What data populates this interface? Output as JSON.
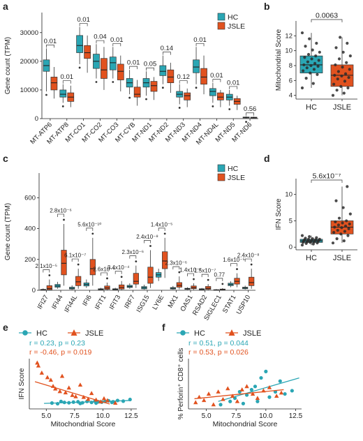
{
  "colors": {
    "hc": "#2aa6b4",
    "jsle": "#e1521f",
    "dot": "#333333"
  },
  "chart_data": [
    {
      "panel": "a",
      "type": "box",
      "ylabel": "Gene count (TPM)",
      "ylim": [
        0,
        37000
      ],
      "yticks": [
        0,
        10000,
        20000,
        30000
      ],
      "groups": [
        "HC",
        "JSLE"
      ],
      "categories": [
        "MT-ATP6",
        "MT-ATP8",
        "MT-CO1",
        "MT-CO2",
        "MT-CO3",
        "MT-CYB",
        "MT-ND1",
        "MT-ND2",
        "MT-ND3",
        "MT-ND4",
        "MT-ND4L",
        "MT-ND5",
        "MT-ND6"
      ],
      "pvalues": [
        "0.01",
        "0.01",
        "0.01",
        "0.04",
        "0.01",
        "0.01",
        "0.05",
        "0.14",
        "0.12",
        "0.01",
        "0.01",
        "0.01",
        "0.56"
      ],
      "boxes": {
        "HC": [
          [
            9500,
            16500,
            18500,
            20500,
            24500
          ],
          [
            5500,
            7500,
            8500,
            10000,
            12000
          ],
          [
            19000,
            23000,
            25500,
            29000,
            32000
          ],
          [
            14000,
            17500,
            20000,
            22500,
            26000
          ],
          [
            14000,
            17000,
            19500,
            21500,
            25000
          ],
          [
            8500,
            11000,
            12500,
            14000,
            17000
          ],
          [
            8000,
            11000,
            12500,
            14000,
            16500
          ],
          [
            12000,
            15000,
            16500,
            18500,
            22000
          ],
          [
            5000,
            7500,
            8500,
            9500,
            12000
          ],
          [
            12000,
            16000,
            18000,
            20500,
            25000
          ],
          [
            5500,
            8000,
            9500,
            10500,
            12500
          ],
          [
            4500,
            6500,
            7500,
            8500,
            10000
          ],
          [
            100,
            250,
            400,
            550,
            800
          ]
        ],
        "JSLE": [
          [
            7000,
            10000,
            12500,
            14500,
            18000
          ],
          [
            4000,
            6000,
            7500,
            9000,
            11500
          ],
          [
            16000,
            21000,
            23000,
            25500,
            29000
          ],
          [
            10000,
            14000,
            17000,
            21000,
            25000
          ],
          [
            9500,
            13500,
            16500,
            19000,
            22000
          ],
          [
            4500,
            7500,
            8500,
            11000,
            13500
          ],
          [
            6500,
            9500,
            11500,
            13000,
            14500
          ],
          [
            9000,
            12500,
            14500,
            17000,
            19500
          ],
          [
            4000,
            6500,
            8000,
            9000,
            10500
          ],
          [
            8500,
            12000,
            14500,
            17500,
            22000
          ],
          [
            4000,
            6500,
            7500,
            9000,
            10000
          ],
          [
            3000,
            5000,
            6000,
            7000,
            8000
          ],
          [
            100,
            200,
            350,
            500,
            700
          ]
        ]
      },
      "legend": [
        "HC",
        "JSLE"
      ]
    },
    {
      "panel": "b",
      "type": "box",
      "ylabel": "Mitochondrial Score",
      "ylim": [
        3.5,
        14
      ],
      "yticks": [
        4,
        6,
        8,
        10,
        12
      ],
      "categories": [
        "HC",
        "JSLE"
      ],
      "pvalue": "0.0063",
      "boxes": [
        [
          5.0,
          7.0,
          8.1,
          9.3,
          12.4
        ],
        [
          4.0,
          5.2,
          6.7,
          8.1,
          11.8
        ]
      ],
      "points": {
        "HC": [
          5.0,
          5.6,
          6.3,
          6.8,
          7.0,
          7.3,
          7.5,
          7.7,
          7.9,
          8.0,
          8.1,
          8.3,
          8.5,
          8.7,
          8.9,
          9.1,
          9.3,
          9.5,
          9.8,
          10.1,
          10.6,
          11.0,
          11.6,
          12.4
        ],
        "JSLE": [
          4.0,
          4.3,
          4.7,
          5.0,
          5.2,
          5.5,
          5.9,
          6.2,
          6.4,
          6.6,
          6.7,
          6.9,
          7.2,
          7.5,
          7.8,
          8.1,
          8.4,
          8.9,
          9.3,
          9.8,
          10.4,
          11.0,
          11.8
        ]
      }
    },
    {
      "panel": "c",
      "type": "box",
      "ylabel": "Gene count (TPM)",
      "ylim": [
        0,
        760
      ],
      "yticks": [
        0,
        200,
        400,
        600
      ],
      "categories": [
        "IFI27",
        "IFI44",
        "IFI44L",
        "IFI6",
        "IFIT1",
        "IFIT3",
        "IRF7",
        "ISG15",
        "LY6E",
        "MX1",
        "OAS1",
        "RSAD2",
        "SIGLEC1",
        "STAT1",
        "USP10"
      ],
      "pvalues": [
        "2.1x10⁻⁵",
        "2.8x10⁻⁶",
        "6.1x10⁻⁷",
        "5.6x10⁻¹⁰",
        "2.6x10⁻⁵",
        "3.4x10⁻⁴",
        "2.3x10⁻⁶",
        "2.4x10⁻⁸",
        "1.4x10⁻⁵",
        "2.3x10⁻⁶",
        "1.4x10⁻⁴",
        "1.5x10⁻⁷",
        "0.77",
        "1.6x10⁻⁵",
        "2.4x10⁻⁸"
      ],
      "boxes": {
        "HC": [
          [
            0,
            1,
            3,
            6,
            12
          ],
          [
            10,
            20,
            28,
            38,
            55
          ],
          [
            3,
            8,
            13,
            20,
            32
          ],
          [
            15,
            28,
            38,
            48,
            70
          ],
          [
            1,
            3,
            6,
            10,
            16
          ],
          [
            1,
            3,
            6,
            10,
            16
          ],
          [
            10,
            18,
            24,
            32,
            45
          ],
          [
            4,
            9,
            16,
            24,
            36
          ],
          [
            60,
            85,
            100,
            115,
            140
          ],
          [
            4,
            8,
            13,
            18,
            28
          ],
          [
            3,
            6,
            9,
            13,
            20
          ],
          [
            1,
            3,
            6,
            10,
            15
          ],
          [
            0,
            1,
            2,
            4,
            8
          ],
          [
            20,
            30,
            38,
            46,
            58
          ],
          [
            5,
            10,
            15,
            20,
            30
          ]
        ],
        "JSLE": [
          [
            0,
            4,
            12,
            30,
            70
          ],
          [
            30,
            100,
            175,
            260,
            430
          ],
          [
            10,
            30,
            55,
            90,
            140
          ],
          [
            30,
            100,
            140,
            200,
            340
          ],
          [
            1,
            6,
            15,
            28,
            50
          ],
          [
            2,
            8,
            18,
            35,
            60
          ],
          [
            15,
            40,
            58,
            110,
            160
          ],
          [
            15,
            45,
            85,
            150,
            260
          ],
          [
            80,
            140,
            190,
            250,
            340
          ],
          [
            6,
            20,
            32,
            50,
            90
          ],
          [
            3,
            10,
            17,
            28,
            45
          ],
          [
            2,
            6,
            13,
            25,
            40
          ],
          [
            0,
            2,
            4,
            8,
            14
          ],
          [
            20,
            40,
            58,
            78,
            110
          ],
          [
            10,
            30,
            50,
            85,
            140
          ]
        ]
      },
      "legend": [
        "HC",
        "JSLE"
      ]
    },
    {
      "panel": "d",
      "type": "box",
      "ylabel": "IFN Score",
      "ylim": [
        -0.5,
        13
      ],
      "yticks": [
        0,
        5,
        10
      ],
      "categories": [
        "HC",
        "JSLE"
      ],
      "pvalue": "5.6x10⁻⁷",
      "boxes": [
        [
          0.4,
          0.9,
          1.2,
          1.5,
          2.2
        ],
        [
          0.8,
          2.5,
          3.8,
          5.0,
          11.5
        ]
      ],
      "points": {
        "HC": [
          0.4,
          0.6,
          0.7,
          0.8,
          0.9,
          0.9,
          1.0,
          1.0,
          1.1,
          1.1,
          1.2,
          1.2,
          1.2,
          1.3,
          1.3,
          1.4,
          1.4,
          1.5,
          1.5,
          1.6,
          1.7,
          1.8,
          2.0,
          2.2
        ],
        "JSLE": [
          0.8,
          1.2,
          1.6,
          2.2,
          2.5,
          2.8,
          3.0,
          3.2,
          3.5,
          3.7,
          3.8,
          4.0,
          4.2,
          4.4,
          4.6,
          4.8,
          5.0,
          5.5,
          6.3,
          7.5,
          8.8,
          11.5
        ]
      }
    },
    {
      "panel": "e",
      "type": "scatter",
      "xlabel": "Mitochondrial Score",
      "ylabel": "IFN Score",
      "xlim": [
        3.5,
        13
      ],
      "ylim": [
        -1,
        14.5
      ],
      "xticks": [
        5.0,
        7.5,
        10.0,
        12.5
      ],
      "xtick_labels": [
        "5.0",
        "7.5",
        "10.0",
        "12.5"
      ],
      "legend": [
        "HC",
        "JSLE"
      ],
      "stats": {
        "HC": "r = 0.23, p = 0.23",
        "JSLE": "r = -0.46, p = 0.019"
      },
      "series": [
        {
          "name": "HC",
          "marker": "circle",
          "x": [
            5.5,
            6.0,
            6.6,
            7.0,
            7.4,
            7.8,
            8.2,
            8.6,
            9.0,
            9.3,
            9.6,
            9.9,
            10.2,
            10.5,
            10.9,
            11.3,
            11.8,
            12.4,
            8.0,
            9.4,
            10.8,
            6.3
          ],
          "y": [
            0.8,
            0.6,
            1.0,
            0.9,
            1.1,
            1.2,
            0.9,
            1.3,
            1.0,
            1.4,
            1.2,
            1.1,
            1.3,
            1.5,
            1.2,
            1.6,
            1.4,
            1.9,
            0.7,
            0.8,
            1.0,
            1.3
          ],
          "fit": [
            [
              4.8,
              0.7
            ],
            [
              12.5,
              1.6
            ]
          ]
        },
        {
          "name": "JSLE",
          "marker": "triangle",
          "x": [
            4.2,
            4.3,
            4.6,
            5.1,
            5.4,
            5.6,
            5.8,
            6.2,
            6.4,
            6.7,
            7.0,
            7.3,
            7.6,
            8.0,
            8.3,
            8.7,
            9.0,
            9.4,
            9.8,
            10.1,
            10.4,
            11.1
          ],
          "y": [
            13.2,
            12.3,
            10.1,
            8.7,
            7.9,
            6.0,
            5.2,
            4.4,
            9.1,
            4.0,
            5.5,
            3.2,
            2.8,
            6.4,
            2.6,
            2.0,
            3.8,
            1.8,
            1.2,
            2.2,
            1.6,
            0.8
          ],
          "fit": [
            [
              4.0,
              7.4
            ],
            [
              10.6,
              0.5
            ]
          ]
        }
      ]
    },
    {
      "panel": "f",
      "type": "scatter",
      "xlabel": "Mitochondrial Score",
      "ylabel": "% Perforin⁺ CD8⁺ cells",
      "xlim": [
        3.5,
        13
      ],
      "ylim": [
        -2,
        45
      ],
      "xticks": [
        5.0,
        7.5,
        10.0,
        12.5
      ],
      "xtick_labels": [
        "5.0",
        "7.5",
        "10.0",
        "12.5"
      ],
      "legend": [
        "HC",
        "JSLE"
      ],
      "stats": {
        "HC": "r = 0.51, p = 0.044",
        "JSLE": "r = 0.53, p = 0.026"
      },
      "series": [
        {
          "name": "HC",
          "marker": "circle",
          "x": [
            6.2,
            7.0,
            7.4,
            7.8,
            8.1,
            8.4,
            8.8,
            9.1,
            9.6,
            10.0,
            10.3,
            10.8,
            11.2,
            11.6,
            12.2,
            9.3
          ],
          "y": [
            2,
            5,
            8,
            14,
            3,
            11,
            16,
            19,
            27,
            33,
            9,
            14,
            24,
            12,
            15,
            5
          ],
          "fit": [
            [
              6.0,
              5
            ],
            [
              12.8,
              27
            ]
          ]
        },
        {
          "name": "JSLE",
          "marker": "triangle",
          "x": [
            4.1,
            4.4,
            4.8,
            5.2,
            5.6,
            6.0,
            6.4,
            6.8,
            7.2,
            7.6,
            8.0,
            8.4,
            8.9,
            9.3,
            9.8,
            10.3,
            10.9,
            11.3
          ],
          "y": [
            4,
            9,
            6,
            12,
            2,
            14,
            7,
            17,
            10,
            5,
            16,
            19,
            12,
            8,
            15,
            18,
            10,
            13
          ],
          "fit": [
            [
              4.0,
              7.5
            ],
            [
              11.5,
              16
            ]
          ]
        }
      ]
    }
  ],
  "panels": {
    "a": {
      "label": "a"
    },
    "b": {
      "label": "b"
    },
    "c": {
      "label": "c"
    },
    "d": {
      "label": "d"
    },
    "e": {
      "label": "e"
    },
    "f": {
      "label": "f"
    }
  }
}
